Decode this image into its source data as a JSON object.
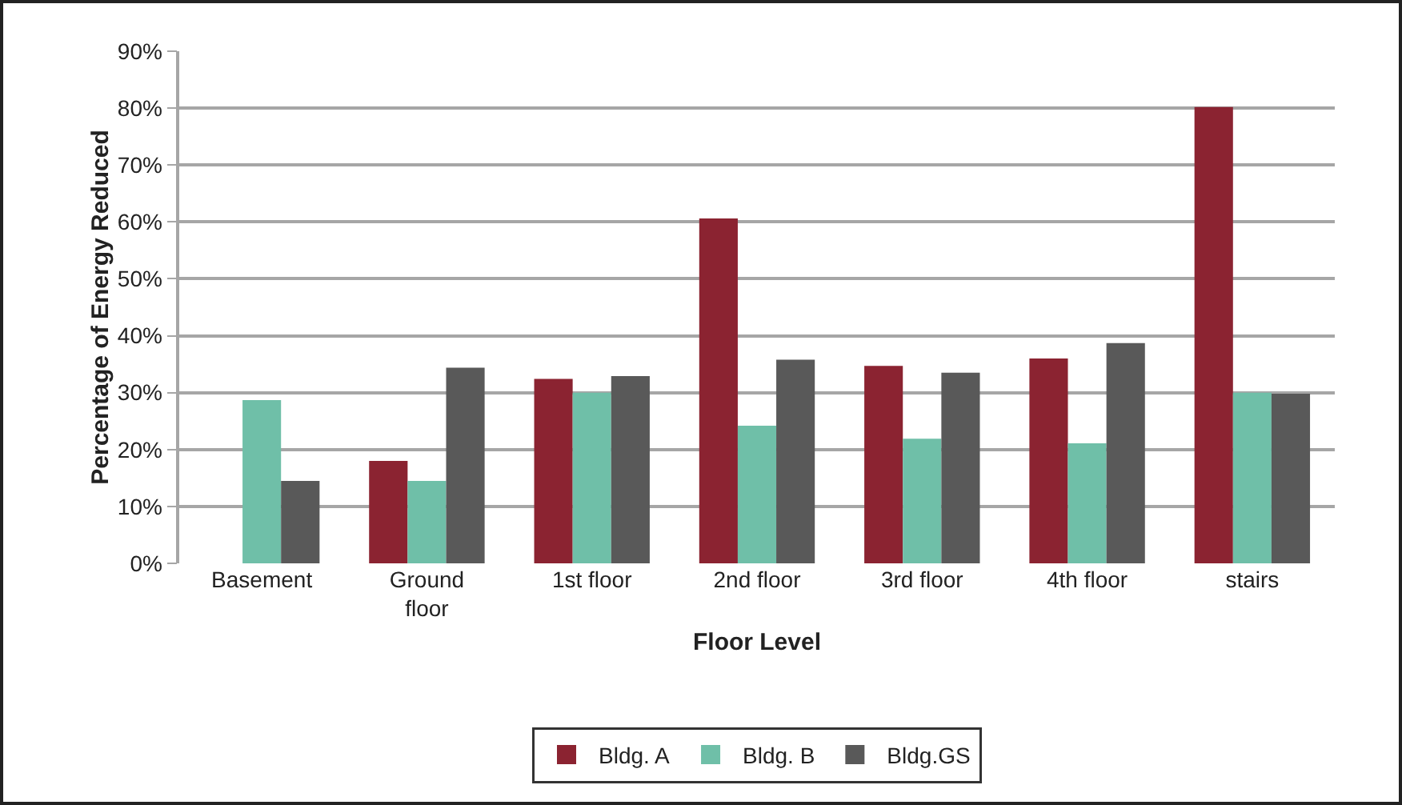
{
  "chart_data": {
    "type": "bar",
    "xlabel": "Floor Level",
    "ylabel": "Percentage of Energy Reduced",
    "categories": [
      "Basement",
      "Ground floor",
      "1st floor",
      "2nd floor",
      "3rd floor",
      "4th floor",
      "stairs"
    ],
    "series": [
      {
        "name": "Bldg. A",
        "color": "#8b2331",
        "values": [
          null,
          18,
          32.4,
          60.6,
          34.7,
          36,
          80.2
        ]
      },
      {
        "name": "Bldg. B",
        "color": "#6fbfa8",
        "values": [
          28.7,
          14.5,
          30,
          24.2,
          21.9,
          21.1,
          30
        ]
      },
      {
        "name": "Bldg.GS",
        "color": "#595959",
        "values": [
          14.5,
          34.4,
          32.9,
          35.8,
          33.5,
          38.7,
          29.8
        ]
      }
    ],
    "ylim": [
      0,
      90
    ],
    "yticks": [
      {
        "value": 0,
        "label": "0%"
      },
      {
        "value": 10,
        "label": "10%"
      },
      {
        "value": 20,
        "label": "20%"
      },
      {
        "value": 30,
        "label": "30%"
      },
      {
        "value": 40,
        "label": "40%"
      },
      {
        "value": 50,
        "label": "50%"
      },
      {
        "value": 60,
        "label": "60%"
      },
      {
        "value": 70,
        "label": "70%"
      },
      {
        "value": 80,
        "label": "80%"
      },
      {
        "value": 90,
        "label": "90%"
      }
    ],
    "grid": "y",
    "legend": "bottom"
  }
}
